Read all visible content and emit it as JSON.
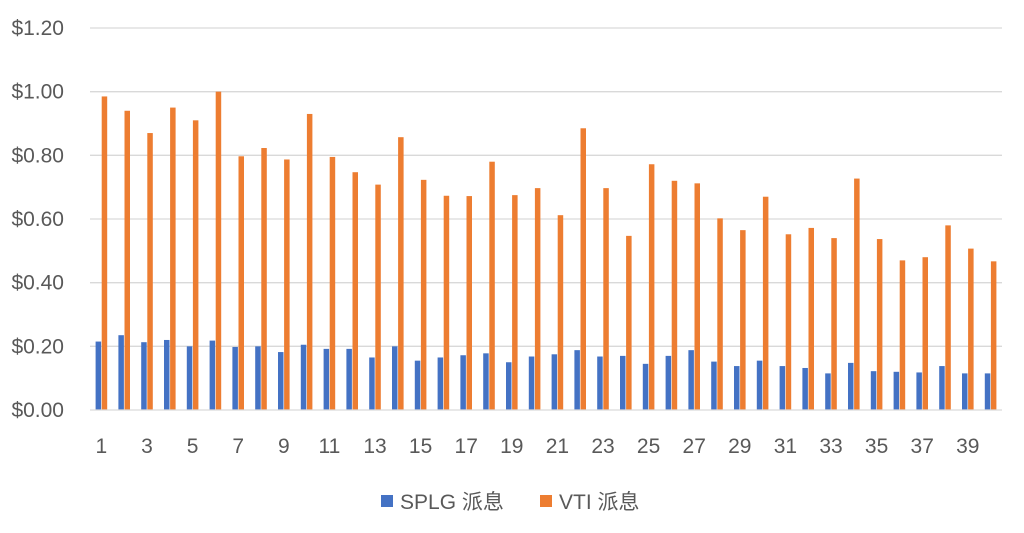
{
  "chart_data": {
    "type": "bar",
    "title": "",
    "xlabel": "",
    "ylabel": "",
    "ylim": [
      0,
      1.2
    ],
    "y_ticks": [
      "$0.00",
      "$0.20",
      "$0.40",
      "$0.60",
      "$0.80",
      "$1.00",
      "$1.20"
    ],
    "y_tick_values": [
      0,
      0.2,
      0.4,
      0.6,
      0.8,
      1.0,
      1.2
    ],
    "x_tick_labels": [
      "1",
      "3",
      "5",
      "7",
      "9",
      "11",
      "13",
      "15",
      "17",
      "19",
      "21",
      "23",
      "25",
      "27",
      "29",
      "31",
      "33",
      "35",
      "37",
      "39"
    ],
    "categories": [
      1,
      2,
      3,
      4,
      5,
      6,
      7,
      8,
      9,
      10,
      11,
      12,
      13,
      14,
      15,
      16,
      17,
      18,
      19,
      20,
      21,
      22,
      23,
      24,
      25,
      26,
      27,
      28,
      29,
      30,
      31,
      32,
      33,
      34,
      35,
      36,
      37,
      38,
      39,
      40
    ],
    "grid": true,
    "legend_position": "bottom",
    "series": [
      {
        "name": "SPLG 派息",
        "color": "#4472C4",
        "values": [
          0.215,
          0.235,
          0.213,
          0.22,
          0.2,
          0.218,
          0.198,
          0.2,
          0.182,
          0.205,
          0.192,
          0.192,
          0.165,
          0.2,
          0.155,
          0.165,
          0.172,
          0.178,
          0.15,
          0.168,
          0.175,
          0.188,
          0.168,
          0.17,
          0.145,
          0.17,
          0.188,
          0.152,
          0.138,
          0.155,
          0.138,
          0.132,
          0.115,
          0.148,
          0.122,
          0.12,
          0.118,
          0.138,
          0.115,
          0.115
        ]
      },
      {
        "name": "VTI 派息",
        "color": "#ED7D31",
        "values": [
          0.985,
          0.94,
          0.87,
          0.95,
          0.91,
          1.0,
          0.797,
          0.823,
          0.787,
          0.93,
          0.795,
          0.747,
          0.708,
          0.857,
          0.723,
          0.673,
          0.672,
          0.78,
          0.675,
          0.697,
          0.612,
          0.885,
          0.697,
          0.547,
          0.772,
          0.72,
          0.712,
          0.602,
          0.565,
          0.67,
          0.552,
          0.572,
          0.54,
          0.727,
          0.537,
          0.47,
          0.48,
          0.58,
          0.507,
          0.467
        ]
      }
    ]
  }
}
